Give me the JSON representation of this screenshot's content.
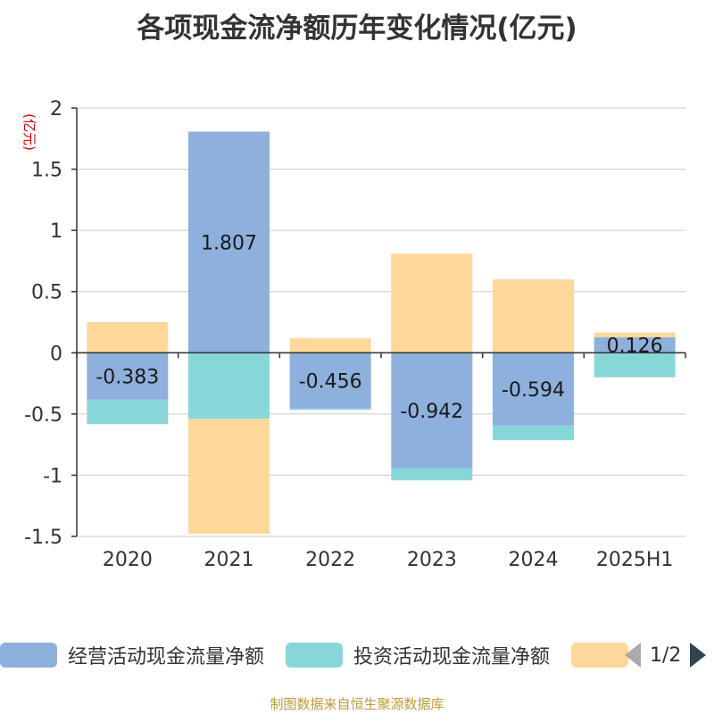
{
  "title": "各项现金流净额历年变化情况(亿元)",
  "footer": "制图数据来自恒生聚源数据库",
  "pager": {
    "text": "1/2"
  },
  "chart_data": {
    "type": "bar",
    "stacked": true,
    "categories": [
      "2020",
      "2021",
      "2022",
      "2023",
      "2024",
      "2025H1"
    ],
    "ylabel": "(亿元)",
    "ylim": [
      -1.5,
      2
    ],
    "yticks": [
      -1.5,
      -1,
      -0.5,
      0,
      0.5,
      1,
      1.5,
      2
    ],
    "ytick_labels": [
      "-1.5",
      "-1",
      "-0.5",
      "0",
      "0.5",
      "1",
      "1.5",
      "2"
    ],
    "grid": true,
    "legend_position": "bottom",
    "series": [
      {
        "name": "经营活动现金流量净额",
        "color": "#8eb0dc",
        "values": [
          -0.383,
          1.807,
          -0.456,
          -0.942,
          -0.594,
          0.126
        ],
        "labels": [
          "-0.383",
          "1.807",
          "-0.456",
          "-0.942",
          "-0.594",
          "0.126"
        ]
      },
      {
        "name": "投资活动现金流量净额",
        "color": "#87d7d9",
        "values": [
          -0.2,
          -0.54,
          -0.01,
          -0.1,
          -0.12,
          -0.2
        ]
      },
      {
        "name": "",
        "color": "#fed89a",
        "values": [
          0.25,
          -0.94,
          0.12,
          0.81,
          0.6,
          0.04
        ]
      }
    ]
  }
}
